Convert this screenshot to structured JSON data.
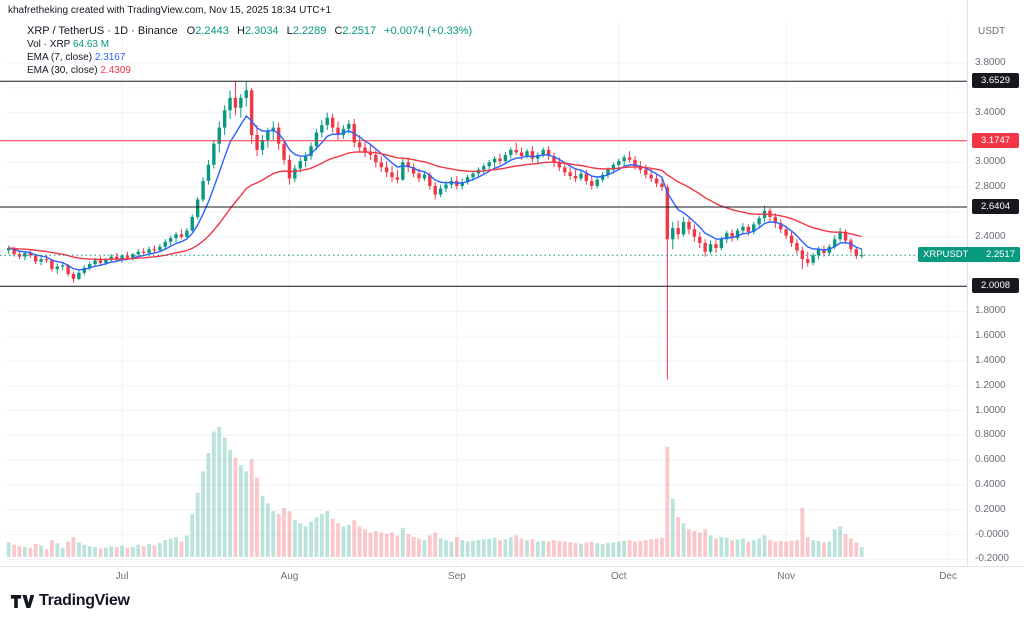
{
  "attribution": "khafretheking created with TradingView.com, Nov 15, 2025 18:34 UTC+1",
  "legend": {
    "symbol_line": "XRP / TetherUS · 1D · Binance",
    "ohlc": [
      {
        "k": "O",
        "v": "2.2443"
      },
      {
        "k": "H",
        "v": "2.3034"
      },
      {
        "k": "L",
        "v": "2.2289"
      },
      {
        "k": "C",
        "v": "2.2517"
      }
    ],
    "change": "+0.0074 (+0.33%)",
    "volume_label": "Vol · XRP",
    "volume_value": "64.63 M",
    "ema7_label": "EMA (7, close)",
    "ema7_value": "2.3167",
    "ema30_label": "EMA (30, close)",
    "ema30_value": "2.4309"
  },
  "axis": {
    "currency": "USDT",
    "ticks": [
      {
        "label": "3.8000",
        "value": 3.8
      },
      {
        "label": "3.4000",
        "value": 3.4
      },
      {
        "label": "3.0000",
        "value": 3.0
      },
      {
        "label": "2.8000",
        "value": 2.8
      },
      {
        "label": "2.4000",
        "value": 2.4
      },
      {
        "label": "1.8000",
        "value": 1.8
      },
      {
        "label": "1.6000",
        "value": 1.6
      },
      {
        "label": "1.4000",
        "value": 1.4
      },
      {
        "label": "1.2000",
        "value": 1.2
      },
      {
        "label": "1.0000",
        "value": 1.0
      },
      {
        "label": "0.8000",
        "value": 0.8
      },
      {
        "label": "0.6000",
        "value": 0.6
      },
      {
        "label": "0.4000",
        "value": 0.4
      },
      {
        "label": "0.2000",
        "value": 0.2
      },
      {
        "label": "-0.0000",
        "value": 0.0
      },
      {
        "label": "-0.2000",
        "value": -0.2
      }
    ],
    "badges": [
      {
        "text": "3.6529",
        "value": 3.6529,
        "bg": "#16181e"
      },
      {
        "text": "3.1747",
        "value": 3.1747,
        "bg": "#f23645"
      },
      {
        "text": "2.6404",
        "value": 2.6404,
        "bg": "#16181e"
      },
      {
        "text": "2.0008",
        "value": 2.0008,
        "bg": "#16181e"
      }
    ],
    "price_badge": {
      "symbol": "XRPUSDT",
      "text": "2.2517",
      "value": 2.2517,
      "bg": "#089981"
    },
    "months": [
      {
        "label": "Jul",
        "index": 21
      },
      {
        "label": "Aug",
        "index": 52
      },
      {
        "label": "Sep",
        "index": 83
      },
      {
        "label": "Oct",
        "index": 113
      },
      {
        "label": "Nov",
        "index": 144
      },
      {
        "label": "Dec",
        "index": 174
      }
    ]
  },
  "footer": {
    "brand": "TradingView"
  },
  "chart_data": {
    "type": "candlestick",
    "title": "XRP / TetherUS · 1D · Binance",
    "ylabel": "Price (USDT)",
    "ylim": [
      -0.245,
      3.865
    ],
    "total_slots": 178,
    "colors": {
      "up": "#089981",
      "down": "#f23645",
      "vol_up": "rgba(8,153,129,0.28)",
      "vol_down": "rgba(242,54,69,0.28)",
      "grid": "#f0f3fa"
    },
    "indicators": [
      {
        "name": "EMA (7, close)",
        "period": 7,
        "color": "#2962ff"
      },
      {
        "name": "EMA (30, close)",
        "period": 30,
        "color": "#f23645"
      }
    ],
    "levels": [
      {
        "value": 3.6529,
        "color": "#16181e",
        "style": "solid"
      },
      {
        "value": 3.1747,
        "color": "#f23645",
        "style": "solid"
      },
      {
        "value": 2.6404,
        "color": "#16181e",
        "style": "solid"
      },
      {
        "value": 2.0008,
        "color": "#16181e",
        "style": "solid"
      },
      {
        "value": 2.2517,
        "color": "#089981",
        "style": "dotted"
      }
    ],
    "candles_format": [
      "open",
      "high",
      "low",
      "close",
      "volume_millions"
    ],
    "candles": [
      [
        2.29,
        2.33,
        2.26,
        2.31,
        95
      ],
      [
        2.31,
        2.32,
        2.24,
        2.26,
        80
      ],
      [
        2.26,
        2.29,
        2.22,
        2.24,
        70
      ],
      [
        2.24,
        2.28,
        2.21,
        2.27,
        65
      ],
      [
        2.27,
        2.3,
        2.23,
        2.25,
        60
      ],
      [
        2.25,
        2.26,
        2.18,
        2.2,
        85
      ],
      [
        2.2,
        2.24,
        2.17,
        2.22,
        75
      ],
      [
        2.22,
        2.25,
        2.19,
        2.21,
        50
      ],
      [
        2.21,
        2.22,
        2.12,
        2.14,
        110
      ],
      [
        2.14,
        2.18,
        2.1,
        2.16,
        90
      ],
      [
        2.16,
        2.19,
        2.13,
        2.17,
        60
      ],
      [
        2.17,
        2.18,
        2.08,
        2.1,
        100
      ],
      [
        2.1,
        2.12,
        2.03,
        2.06,
        130
      ],
      [
        2.06,
        2.13,
        2.05,
        2.11,
        95
      ],
      [
        2.11,
        2.17,
        2.09,
        2.15,
        80
      ],
      [
        2.15,
        2.2,
        2.13,
        2.18,
        70
      ],
      [
        2.18,
        2.23,
        2.16,
        2.21,
        65
      ],
      [
        2.21,
        2.24,
        2.17,
        2.19,
        55
      ],
      [
        2.19,
        2.23,
        2.17,
        2.22,
        60
      ],
      [
        2.22,
        2.26,
        2.2,
        2.24,
        70
      ],
      [
        2.24,
        2.27,
        2.2,
        2.22,
        65
      ],
      [
        2.22,
        2.26,
        2.19,
        2.25,
        75
      ],
      [
        2.25,
        2.28,
        2.22,
        2.23,
        60
      ],
      [
        2.23,
        2.27,
        2.21,
        2.26,
        65
      ],
      [
        2.26,
        2.3,
        2.24,
        2.28,
        80
      ],
      [
        2.28,
        2.31,
        2.25,
        2.27,
        70
      ],
      [
        2.27,
        2.32,
        2.26,
        2.3,
        85
      ],
      [
        2.3,
        2.33,
        2.27,
        2.29,
        75
      ],
      [
        2.29,
        2.34,
        2.28,
        2.32,
        90
      ],
      [
        2.32,
        2.38,
        2.3,
        2.36,
        110
      ],
      [
        2.36,
        2.41,
        2.33,
        2.39,
        120
      ],
      [
        2.39,
        2.44,
        2.36,
        2.42,
        130
      ],
      [
        2.42,
        2.46,
        2.38,
        2.4,
        100
      ],
      [
        2.4,
        2.47,
        2.39,
        2.45,
        140
      ],
      [
        2.45,
        2.58,
        2.44,
        2.56,
        280
      ],
      [
        2.56,
        2.72,
        2.54,
        2.7,
        420
      ],
      [
        2.7,
        2.88,
        2.68,
        2.85,
        560
      ],
      [
        2.85,
        3.02,
        2.82,
        2.98,
        680
      ],
      [
        2.98,
        3.18,
        2.95,
        3.15,
        820
      ],
      [
        3.15,
        3.33,
        3.08,
        3.28,
        850
      ],
      [
        3.28,
        3.46,
        3.22,
        3.42,
        780
      ],
      [
        3.42,
        3.58,
        3.35,
        3.52,
        700
      ],
      [
        3.52,
        3.65,
        3.38,
        3.44,
        650
      ],
      [
        3.44,
        3.55,
        3.36,
        3.52,
        600
      ],
      [
        3.52,
        3.65,
        3.45,
        3.58,
        560
      ],
      [
        3.58,
        3.6,
        3.15,
        3.22,
        640
      ],
      [
        3.22,
        3.3,
        3.05,
        3.1,
        520
      ],
      [
        3.1,
        3.22,
        3.06,
        3.18,
        400
      ],
      [
        3.18,
        3.28,
        3.12,
        3.25,
        350
      ],
      [
        3.25,
        3.33,
        3.18,
        3.28,
        300
      ],
      [
        3.28,
        3.32,
        3.1,
        3.15,
        280
      ],
      [
        3.15,
        3.18,
        2.98,
        3.02,
        320
      ],
      [
        3.02,
        3.06,
        2.82,
        2.87,
        300
      ],
      [
        2.87,
        2.98,
        2.84,
        2.95,
        240
      ],
      [
        2.95,
        3.04,
        2.92,
        3.01,
        220
      ],
      [
        3.01,
        3.08,
        2.96,
        3.05,
        200
      ],
      [
        3.05,
        3.16,
        3.02,
        3.13,
        230
      ],
      [
        3.13,
        3.27,
        3.1,
        3.24,
        260
      ],
      [
        3.24,
        3.34,
        3.2,
        3.3,
        280
      ],
      [
        3.3,
        3.4,
        3.26,
        3.36,
        300
      ],
      [
        3.36,
        3.39,
        3.24,
        3.28,
        250
      ],
      [
        3.28,
        3.33,
        3.18,
        3.22,
        220
      ],
      [
        3.22,
        3.3,
        3.19,
        3.27,
        200
      ],
      [
        3.27,
        3.34,
        3.23,
        3.31,
        210
      ],
      [
        3.31,
        3.35,
        3.12,
        3.16,
        240
      ],
      [
        3.16,
        3.22,
        3.08,
        3.12,
        200
      ],
      [
        3.12,
        3.17,
        3.04,
        3.08,
        180
      ],
      [
        3.08,
        3.14,
        3.02,
        3.06,
        160
      ],
      [
        3.06,
        3.1,
        2.96,
        3.0,
        170
      ],
      [
        3.0,
        3.05,
        2.92,
        2.96,
        160
      ],
      [
        2.96,
        3.01,
        2.88,
        2.92,
        150
      ],
      [
        2.92,
        2.97,
        2.84,
        2.88,
        160
      ],
      [
        2.88,
        2.94,
        2.83,
        2.86,
        140
      ],
      [
        2.86,
        3.03,
        2.85,
        3.0,
        190
      ],
      [
        3.0,
        3.04,
        2.92,
        2.96,
        150
      ],
      [
        2.96,
        2.99,
        2.88,
        2.91,
        130
      ],
      [
        2.91,
        2.95,
        2.84,
        2.87,
        120
      ],
      [
        2.87,
        2.93,
        2.85,
        2.9,
        110
      ],
      [
        2.9,
        2.92,
        2.78,
        2.81,
        140
      ],
      [
        2.81,
        2.84,
        2.7,
        2.74,
        160
      ],
      [
        2.74,
        2.82,
        2.72,
        2.79,
        120
      ],
      [
        2.79,
        2.85,
        2.76,
        2.82,
        110
      ],
      [
        2.82,
        2.88,
        2.79,
        2.85,
        100
      ],
      [
        2.85,
        2.89,
        2.78,
        2.81,
        130
      ],
      [
        2.81,
        2.87,
        2.78,
        2.84,
        110
      ],
      [
        2.84,
        2.9,
        2.82,
        2.88,
        100
      ],
      [
        2.88,
        2.93,
        2.85,
        2.91,
        105
      ],
      [
        2.91,
        2.96,
        2.88,
        2.94,
        110
      ],
      [
        2.94,
        2.99,
        2.9,
        2.97,
        115
      ],
      [
        2.97,
        3.02,
        2.93,
        3.0,
        120
      ],
      [
        3.0,
        3.05,
        2.96,
        3.03,
        125
      ],
      [
        3.03,
        3.07,
        2.98,
        3.01,
        110
      ],
      [
        3.01,
        3.08,
        2.99,
        3.06,
        115
      ],
      [
        3.06,
        3.12,
        3.03,
        3.1,
        130
      ],
      [
        3.1,
        3.16,
        3.06,
        3.08,
        140
      ],
      [
        3.08,
        3.12,
        3.02,
        3.05,
        120
      ],
      [
        3.05,
        3.11,
        3.03,
        3.09,
        110
      ],
      [
        3.09,
        3.13,
        3.0,
        3.03,
        115
      ],
      [
        3.03,
        3.08,
        2.99,
        3.06,
        100
      ],
      [
        3.06,
        3.12,
        3.04,
        3.1,
        105
      ],
      [
        3.1,
        3.13,
        3.02,
        3.05,
        100
      ],
      [
        3.05,
        3.08,
        2.96,
        3.0,
        110
      ],
      [
        3.0,
        3.04,
        2.93,
        2.96,
        105
      ],
      [
        2.96,
        3.0,
        2.89,
        2.92,
        100
      ],
      [
        2.92,
        2.96,
        2.86,
        2.89,
        95
      ],
      [
        2.89,
        2.94,
        2.84,
        2.87,
        90
      ],
      [
        2.87,
        2.93,
        2.85,
        2.91,
        85
      ],
      [
        2.91,
        2.94,
        2.82,
        2.85,
        95
      ],
      [
        2.85,
        2.89,
        2.78,
        2.81,
        100
      ],
      [
        2.81,
        2.88,
        2.79,
        2.86,
        90
      ],
      [
        2.86,
        2.92,
        2.84,
        2.9,
        85
      ],
      [
        2.9,
        2.96,
        2.87,
        2.94,
        90
      ],
      [
        2.94,
        3.0,
        2.91,
        2.98,
        95
      ],
      [
        2.98,
        3.03,
        2.94,
        3.01,
        100
      ],
      [
        3.01,
        3.06,
        2.97,
        3.04,
        105
      ],
      [
        3.04,
        3.09,
        3.0,
        3.02,
        110
      ],
      [
        3.02,
        3.05,
        2.94,
        2.97,
        100
      ],
      [
        2.97,
        3.01,
        2.91,
        2.94,
        105
      ],
      [
        2.94,
        2.98,
        2.87,
        2.9,
        110
      ],
      [
        2.9,
        2.95,
        2.84,
        2.87,
        115
      ],
      [
        2.87,
        2.91,
        2.8,
        2.83,
        120
      ],
      [
        2.83,
        2.88,
        2.77,
        2.8,
        125
      ],
      [
        2.8,
        2.82,
        1.25,
        2.38,
        720
      ],
      [
        2.38,
        2.52,
        2.3,
        2.47,
        380
      ],
      [
        2.47,
        2.53,
        2.38,
        2.42,
        260
      ],
      [
        2.42,
        2.56,
        2.4,
        2.52,
        220
      ],
      [
        2.52,
        2.55,
        2.42,
        2.46,
        180
      ],
      [
        2.46,
        2.5,
        2.36,
        2.4,
        170
      ],
      [
        2.4,
        2.44,
        2.31,
        2.35,
        160
      ],
      [
        2.35,
        2.38,
        2.24,
        2.28,
        180
      ],
      [
        2.28,
        2.37,
        2.26,
        2.34,
        140
      ],
      [
        2.34,
        2.37,
        2.27,
        2.31,
        120
      ],
      [
        2.31,
        2.4,
        2.29,
        2.38,
        130
      ],
      [
        2.38,
        2.45,
        2.35,
        2.43,
        125
      ],
      [
        2.43,
        2.46,
        2.36,
        2.39,
        110
      ],
      [
        2.39,
        2.47,
        2.37,
        2.45,
        115
      ],
      [
        2.45,
        2.51,
        2.42,
        2.48,
        120
      ],
      [
        2.48,
        2.5,
        2.41,
        2.44,
        100
      ],
      [
        2.44,
        2.52,
        2.42,
        2.5,
        110
      ],
      [
        2.5,
        2.57,
        2.47,
        2.55,
        120
      ],
      [
        2.55,
        2.65,
        2.52,
        2.61,
        140
      ],
      [
        2.61,
        2.63,
        2.52,
        2.56,
        110
      ],
      [
        2.56,
        2.59,
        2.47,
        2.51,
        100
      ],
      [
        2.51,
        2.54,
        2.43,
        2.46,
        105
      ],
      [
        2.46,
        2.49,
        2.38,
        2.41,
        100
      ],
      [
        2.41,
        2.44,
        2.32,
        2.35,
        105
      ],
      [
        2.35,
        2.38,
        2.26,
        2.29,
        110
      ],
      [
        2.29,
        2.32,
        2.14,
        2.22,
        320
      ],
      [
        2.22,
        2.28,
        2.16,
        2.19,
        130
      ],
      [
        2.19,
        2.27,
        2.17,
        2.25,
        110
      ],
      [
        2.25,
        2.32,
        2.22,
        2.3,
        105
      ],
      [
        2.3,
        2.33,
        2.24,
        2.27,
        95
      ],
      [
        2.27,
        2.34,
        2.25,
        2.32,
        100
      ],
      [
        2.32,
        2.41,
        2.3,
        2.38,
        180
      ],
      [
        2.38,
        2.47,
        2.36,
        2.44,
        200
      ],
      [
        2.44,
        2.46,
        2.34,
        2.37,
        150
      ],
      [
        2.37,
        2.39,
        2.27,
        2.3,
        120
      ],
      [
        2.3,
        2.32,
        2.22,
        2.2443,
        95
      ],
      [
        2.2443,
        2.3034,
        2.2289,
        2.2517,
        64.63
      ]
    ]
  }
}
